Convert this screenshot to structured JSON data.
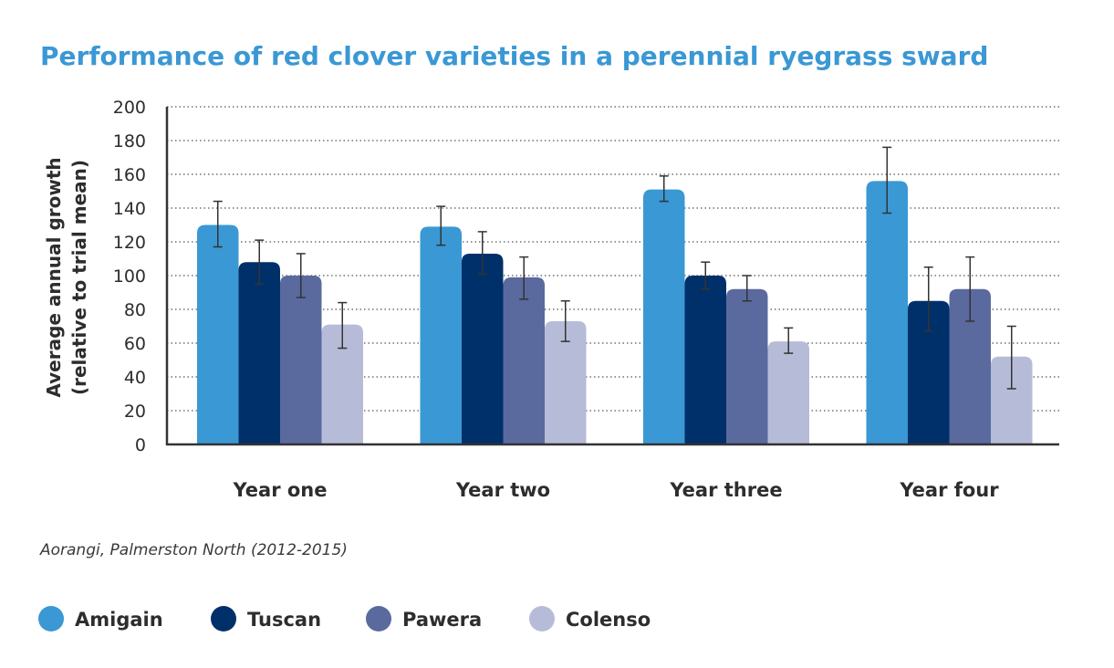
{
  "chart_data": {
    "type": "bar",
    "title": "Performance of red clover varieties in a perennial ryegrass sward",
    "ylabel_line1": "Average annual growth",
    "ylabel_line2": "(relative to trial mean)",
    "xlabel": "",
    "ylim": [
      0,
      200
    ],
    "yticks": [
      0,
      20,
      40,
      60,
      80,
      100,
      120,
      140,
      160,
      180,
      200
    ],
    "grid": "horizontal-dotted",
    "categories": [
      "Year one",
      "Year two",
      "Year three",
      "Year four"
    ],
    "series": [
      {
        "name": "Amigain",
        "color": "#3a98d4",
        "values": [
          130,
          129,
          151,
          156
        ],
        "error_low": [
          117,
          118,
          144,
          137
        ],
        "error_high": [
          144,
          141,
          159,
          176
        ]
      },
      {
        "name": "Tuscan",
        "color": "#00306a",
        "values": [
          108,
          113,
          100,
          85
        ],
        "error_low": [
          95,
          101,
          92,
          67
        ],
        "error_high": [
          121,
          126,
          108,
          105
        ]
      },
      {
        "name": "Pawera",
        "color": "#5a6a9e",
        "values": [
          100,
          99,
          92,
          92
        ],
        "error_low": [
          87,
          86,
          85,
          73
        ],
        "error_high": [
          113,
          111,
          100,
          111
        ]
      },
      {
        "name": "Colenso",
        "color": "#b6bcd8",
        "values": [
          71,
          73,
          61,
          52
        ],
        "error_low": [
          57,
          61,
          54,
          33
        ],
        "error_high": [
          84,
          85,
          69,
          70
        ]
      }
    ],
    "note": "Aorangi, Palmerston North (2012-2015)",
    "legend_position": "bottom-left"
  }
}
